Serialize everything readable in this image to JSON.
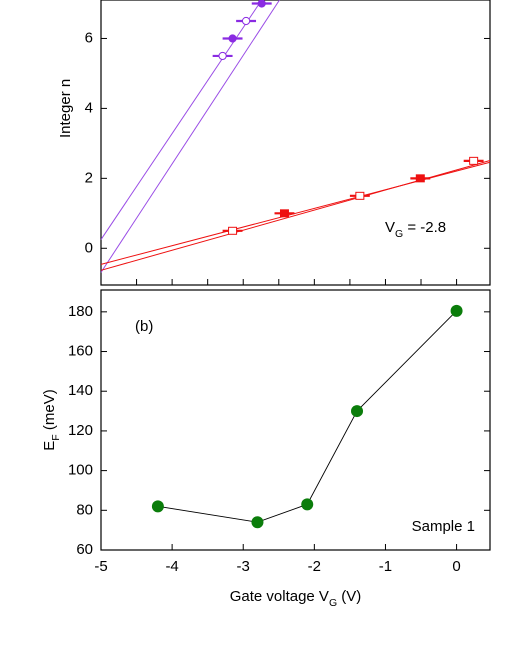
{
  "chart_data": [
    {
      "type": "scatter",
      "ylabel": [
        "Integer n"
      ],
      "annotation": [
        "V",
        "G",
        " = -2.8"
      ],
      "xlim": [
        -5,
        0.47
      ],
      "xticks": [
        -5,
        -4.5,
        -4,
        -3.5,
        -3,
        -2.5,
        -2,
        -1.5,
        -1,
        -0.5,
        0
      ],
      "ylim": [
        -1.05,
        7.1
      ],
      "yticks": [
        0,
        2,
        4,
        6
      ],
      "series": [
        {
          "color": "#8a2be2",
          "marker": "circle",
          "filled": true,
          "x": [
            -3.15,
            -2.74
          ],
          "values": [
            6,
            7
          ],
          "xerr": [
            0.14,
            0.14
          ]
        },
        {
          "color": "#8a2be2",
          "marker": "circle",
          "filled": false,
          "x": [
            -3.29,
            -2.96
          ],
          "values": [
            5.5,
            6.5
          ],
          "xerr": [
            0.14,
            0.14
          ]
        },
        {
          "color": "#ee1111",
          "marker": "square",
          "filled": true,
          "x": [
            -2.42,
            -0.51
          ],
          "values": [
            1,
            2
          ],
          "xerr": [
            0.14,
            0.14
          ]
        },
        {
          "color": "#ee1111",
          "marker": "square",
          "filled": false,
          "x": [
            -3.15,
            -1.36,
            0.24
          ],
          "values": [
            0.5,
            1.5,
            2.5
          ],
          "xerr": [
            0.14,
            0.14,
            0.14
          ]
        }
      ],
      "lines": [
        {
          "color": "#9a4de6",
          "x": [
            -5,
            -2.74
          ],
          "values": [
            0.25,
            7.1
          ]
        },
        {
          "color": "#9a4de6",
          "x": [
            -5,
            -2.49
          ],
          "values": [
            -0.69,
            7.1
          ]
        },
        {
          "color": "#ee1111",
          "x": [
            -5,
            0.47
          ],
          "values": [
            -0.63,
            2.51
          ]
        },
        {
          "color": "#ee1111",
          "x": [
            -5,
            0.47
          ],
          "values": [
            -0.46,
            2.46
          ]
        }
      ]
    },
    {
      "type": "line",
      "xlabel": [
        "Gate voltage V",
        "G",
        " (V)"
      ],
      "ylabel": [
        "E",
        "F",
        " (meV)"
      ],
      "annotations": [
        "(b)",
        "Sample 1"
      ],
      "xlim": [
        -5,
        0.47
      ],
      "xticks": [
        -5,
        -4,
        -3,
        -2,
        -1,
        0
      ],
      "ylim": [
        60,
        191
      ],
      "yticks": [
        60,
        80,
        100,
        120,
        140,
        160,
        180
      ],
      "x": [
        -4.2,
        -2.8,
        -2.1,
        -1.4,
        0
      ],
      "values": [
        82,
        74,
        83,
        130,
        180.5
      ],
      "color": "#0b7d0b",
      "line_color": "#000000"
    }
  ]
}
